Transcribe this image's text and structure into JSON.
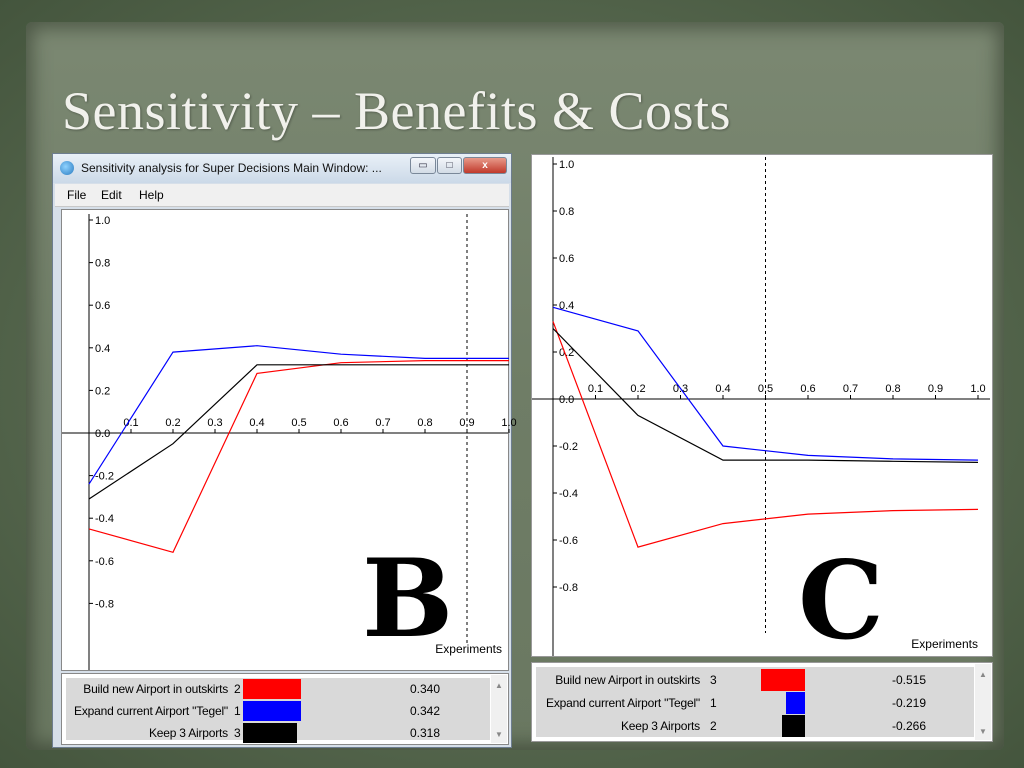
{
  "slide": {
    "title": "Sensitivity – Benefits & Costs"
  },
  "window": {
    "title": "Sensitivity analysis for Super Decisions Main Window: ...",
    "menu": [
      "File",
      "Edit",
      "Help"
    ],
    "controls": {
      "minimize": "▭",
      "maximize": "□",
      "close": "x"
    }
  },
  "colors": {
    "red": "#ff0000",
    "blue": "#0000ff",
    "black": "#000000"
  },
  "panels": {
    "B": {
      "letter": "B",
      "xlabel": "Experiments",
      "legend": [
        {
          "name": "Build new Airport in outskirts",
          "rank": "2",
          "value": "0.340",
          "color": "#ff0000"
        },
        {
          "name": "Expand current Airport \"Tegel\"",
          "rank": "1",
          "value": "0.342",
          "color": "#0000ff"
        },
        {
          "name": "Keep 3 Airports",
          "rank": "3",
          "value": "0.318",
          "color": "#000000"
        }
      ]
    },
    "C": {
      "letter": "C",
      "xlabel": "Experiments",
      "legend": [
        {
          "name": "Build new Airport in outskirts",
          "rank": "3",
          "value": "-0.515",
          "color": "#ff0000"
        },
        {
          "name": "Expand current Airport \"Tegel\"",
          "rank": "1",
          "value": "-0.219",
          "color": "#0000ff"
        },
        {
          "name": "Keep 3 Airports",
          "rank": "2",
          "value": "-0.266",
          "color": "#000000"
        }
      ]
    }
  },
  "chart_data": [
    {
      "type": "line",
      "panel": "B",
      "xlabel": "Experiments",
      "ylabel": "",
      "xlim": [
        0,
        1.0
      ],
      "ylim": [
        -1.0,
        1.0
      ],
      "x_ticks": [
        "0.1",
        "0.2",
        "0.3",
        "0.4",
        "0.5",
        "0.6",
        "0.7",
        "0.8",
        "0.9",
        "1.0"
      ],
      "y_ticks": [
        "1.0",
        "0.8",
        "0.6",
        "0.4",
        "0.2",
        "0.0",
        "-0.2",
        "-0.4",
        "-0.6",
        "-0.8"
      ],
      "marker_x": 0.9,
      "series": [
        {
          "name": "Build new Airport in outskirts",
          "color": "#ff0000",
          "x": [
            0,
            0.2,
            0.4,
            0.6,
            0.8,
            1.0
          ],
          "y": [
            -0.45,
            -0.56,
            0.28,
            0.33,
            0.34,
            0.34
          ]
        },
        {
          "name": "Expand current Airport \"Tegel\"",
          "color": "#0000ff",
          "x": [
            0,
            0.2,
            0.4,
            0.6,
            0.8,
            1.0
          ],
          "y": [
            -0.24,
            0.38,
            0.41,
            0.37,
            0.35,
            0.35
          ]
        },
        {
          "name": "Keep 3 Airports",
          "color": "#000000",
          "x": [
            0,
            0.2,
            0.4,
            0.6,
            0.8,
            1.0
          ],
          "y": [
            -0.31,
            -0.05,
            0.32,
            0.32,
            0.32,
            0.32
          ]
        }
      ]
    },
    {
      "type": "line",
      "panel": "C",
      "xlabel": "Experiments",
      "ylabel": "",
      "xlim": [
        0,
        1.0
      ],
      "ylim": [
        -1.0,
        1.0
      ],
      "x_ticks": [
        "0.1",
        "0.2",
        "0.3",
        "0.4",
        "0.5",
        "0.6",
        "0.7",
        "0.8",
        "0.9",
        "1.0"
      ],
      "y_ticks": [
        "1.0",
        "0.8",
        "0.6",
        "0.4",
        "0.2",
        "0.0",
        "-0.2",
        "-0.4",
        "-0.6",
        "-0.8"
      ],
      "marker_x": 0.5,
      "series": [
        {
          "name": "Build new Airport in outskirts",
          "color": "#ff0000",
          "x": [
            0,
            0.2,
            0.4,
            0.6,
            0.8,
            1.0
          ],
          "y": [
            0.33,
            -0.63,
            -0.53,
            -0.49,
            -0.475,
            -0.47
          ]
        },
        {
          "name": "Expand current Airport \"Tegel\"",
          "color": "#0000ff",
          "x": [
            0,
            0.2,
            0.4,
            0.6,
            0.8,
            1.0
          ],
          "y": [
            0.39,
            0.29,
            -0.2,
            -0.24,
            -0.255,
            -0.26
          ]
        },
        {
          "name": "Keep 3 Airports",
          "color": "#000000",
          "x": [
            0,
            0.2,
            0.4,
            0.6,
            0.8,
            1.0
          ],
          "y": [
            0.3,
            -0.07,
            -0.26,
            -0.26,
            -0.265,
            -0.27
          ]
        }
      ]
    }
  ]
}
